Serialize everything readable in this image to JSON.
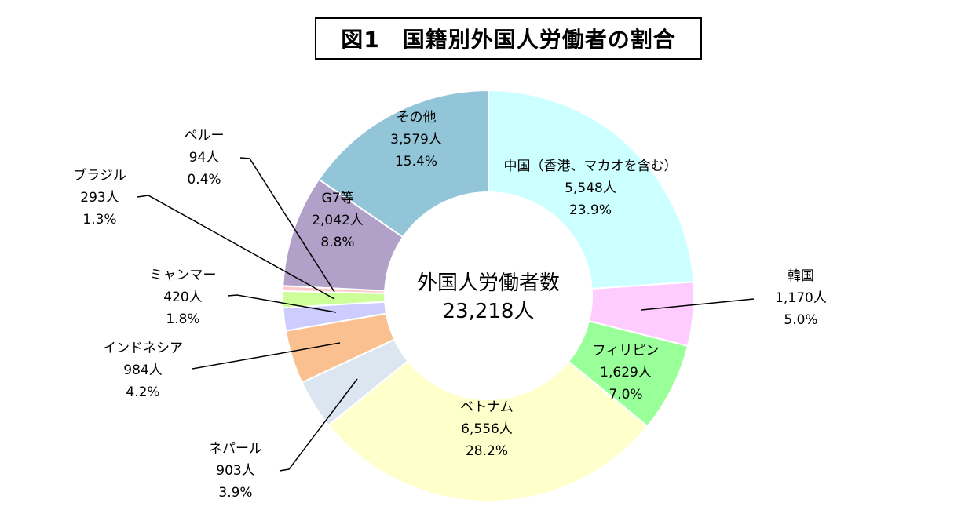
{
  "chart_data": {
    "type": "pie",
    "title": "図1　国籍別外国人労働者の割合",
    "center_label": "外国人労働者数",
    "center_value": "23,218人",
    "slices": [
      {
        "name": "中国（香港、マカオを含む）",
        "count": "5,548人",
        "percent": "23.9%",
        "value": 23.9,
        "color": "#ccffff"
      },
      {
        "name": "韓国",
        "count": "1,170人",
        "percent": "5.0%",
        "value": 5.0,
        "color": "#ffccff"
      },
      {
        "name": "フィリピン",
        "count": "1,629人",
        "percent": "7.0%",
        "value": 7.0,
        "color": "#99ff99"
      },
      {
        "name": "ベトナム",
        "count": "6,556人",
        "percent": "28.2%",
        "value": 28.2,
        "color": "#ffffcc"
      },
      {
        "name": "ネパール",
        "count": "903人",
        "percent": "3.9%",
        "value": 3.9,
        "color": "#dce6f1"
      },
      {
        "name": "インドネシア",
        "count": "984人",
        "percent": "4.2%",
        "value": 4.2,
        "color": "#fac090"
      },
      {
        "name": "ミャンマー",
        "count": "420人",
        "percent": "1.8%",
        "value": 1.8,
        "color": "#ccccff"
      },
      {
        "name": "ブラジル",
        "count": "293人",
        "percent": "1.3%",
        "value": 1.3,
        "color": "#ccff99"
      },
      {
        "name": "ペルー",
        "count": "94人",
        "percent": "0.4%",
        "value": 0.4,
        "color": "#ffcccc"
      },
      {
        "name": "G7等",
        "count": "2,042人",
        "percent": "8.8%",
        "value": 8.8,
        "color": "#b1a0c7"
      },
      {
        "name": "その他",
        "count": "3,579人",
        "percent": "15.4%",
        "value": 15.4,
        "color": "#92c5d8"
      }
    ]
  }
}
